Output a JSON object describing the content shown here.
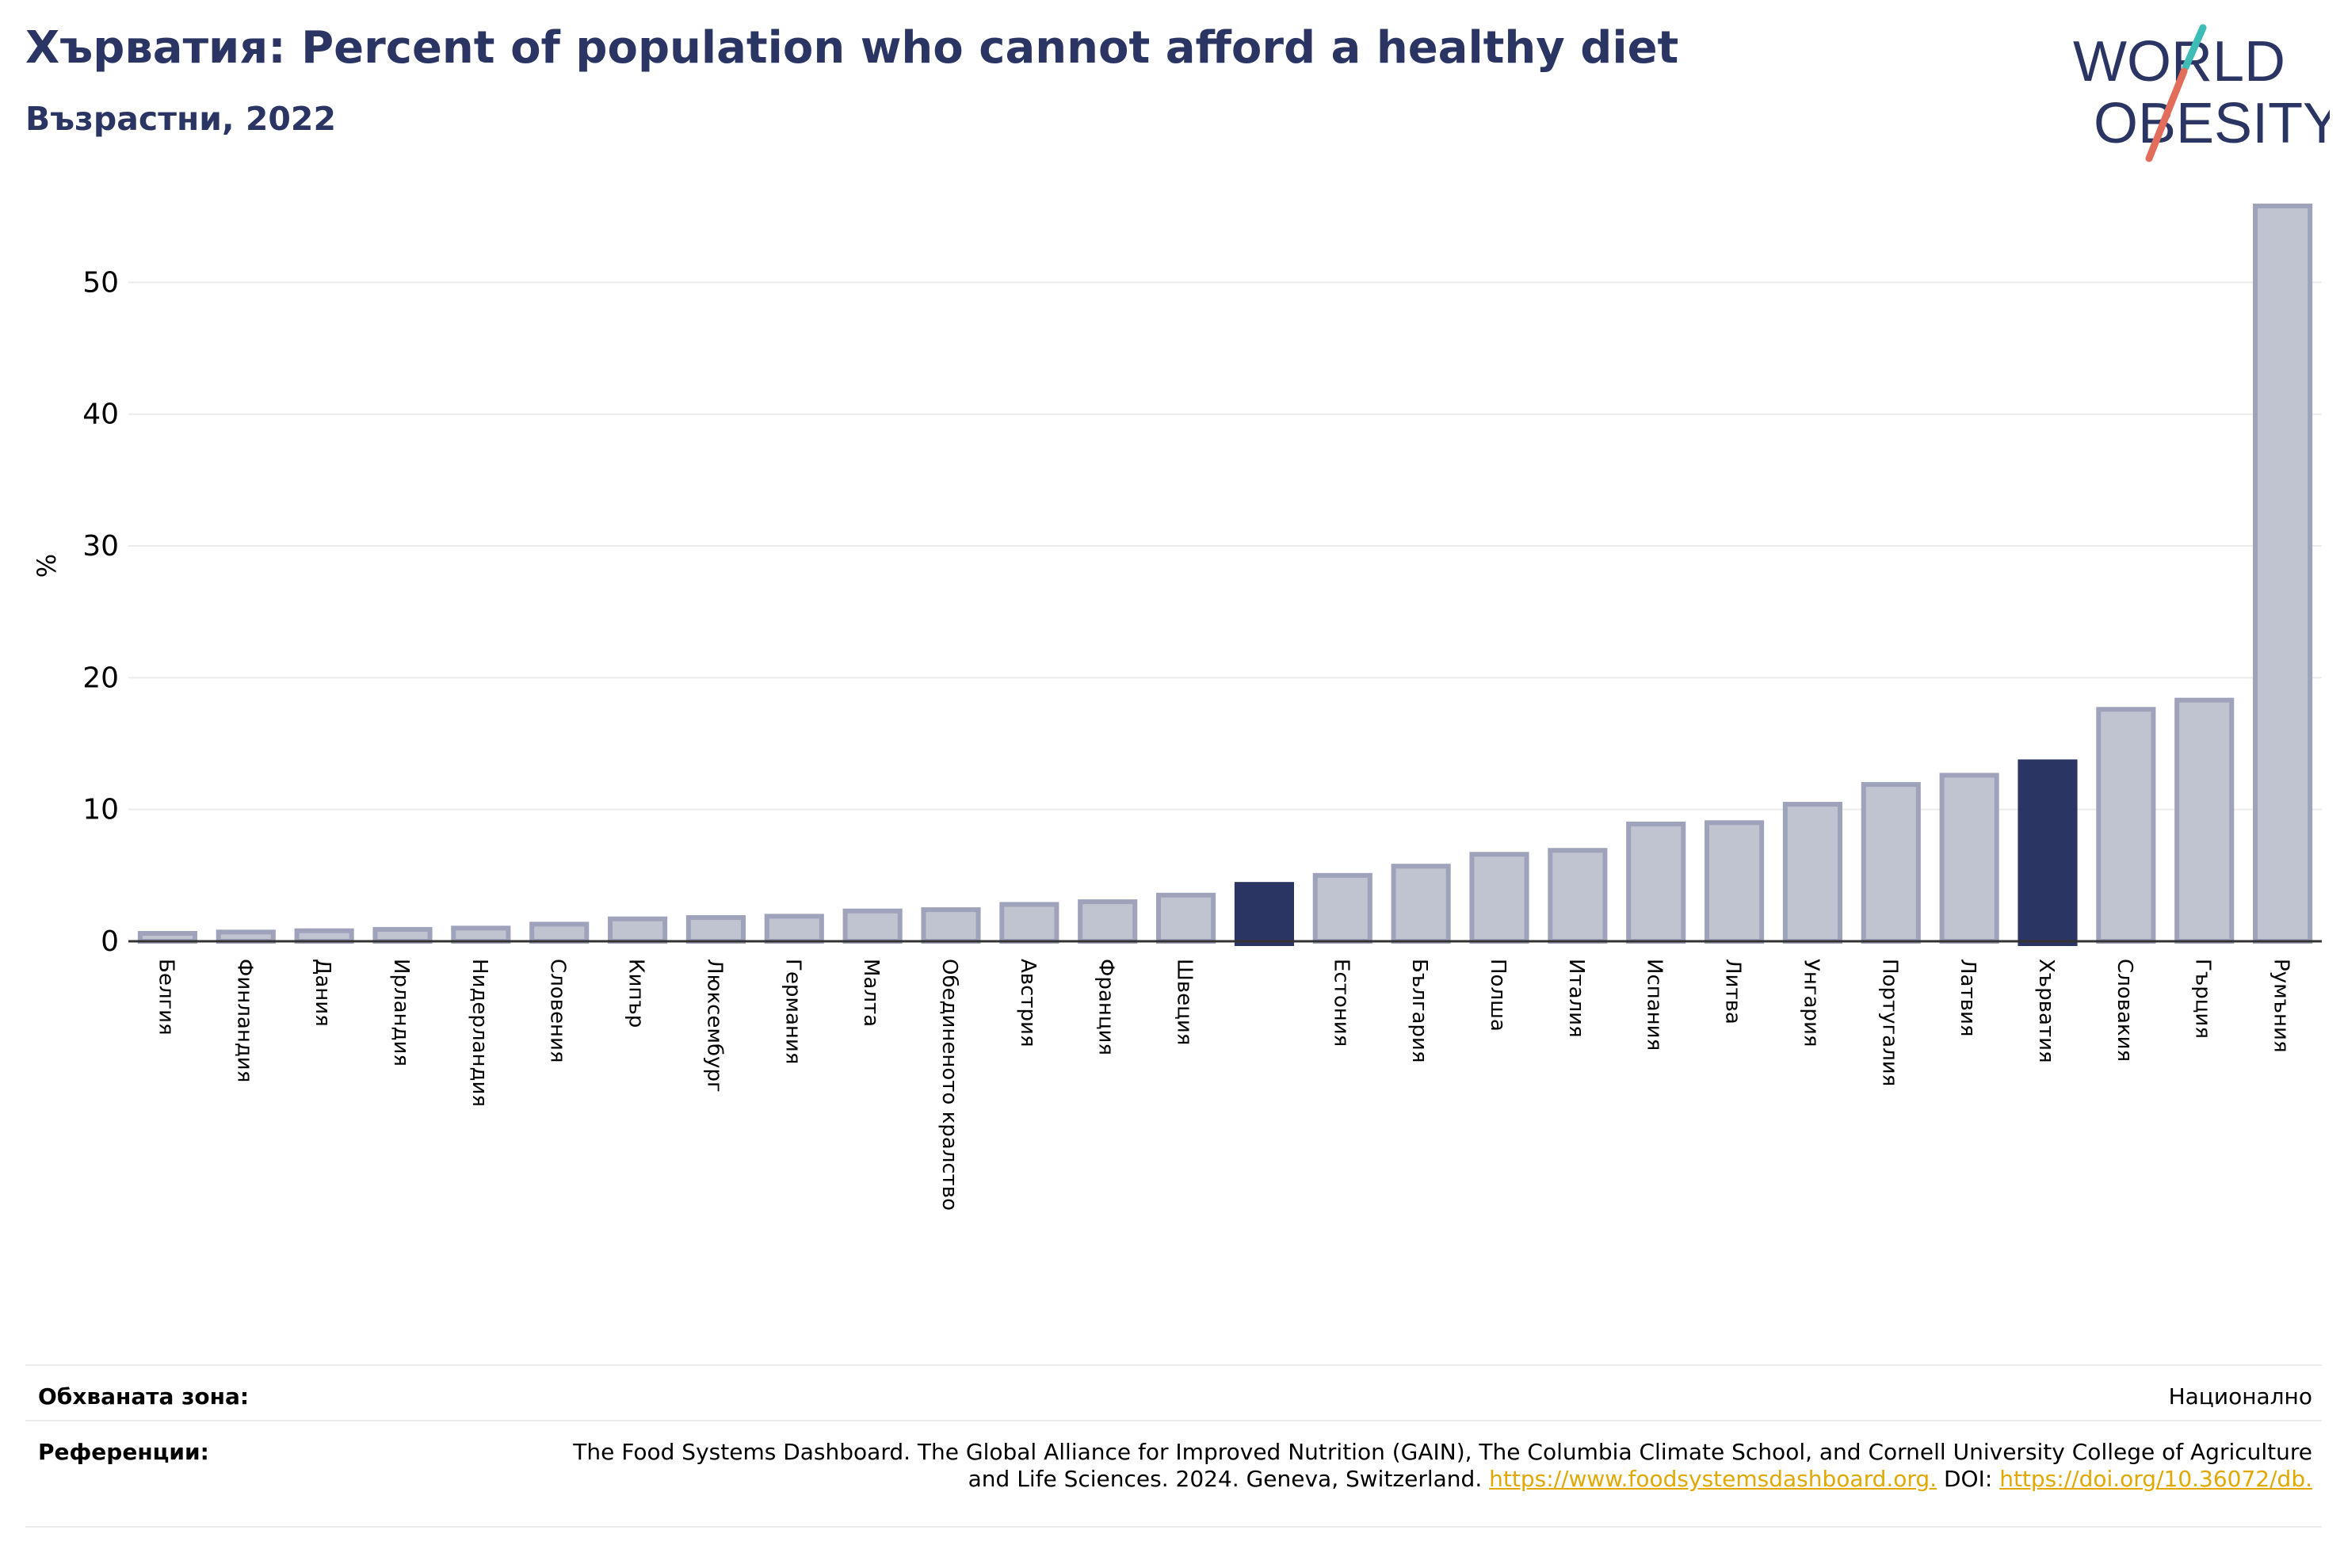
{
  "header": {
    "title": "Хърватия: Percent of population who cannot afford a healthy diet",
    "subtitle": "Възрастни, 2022"
  },
  "logo": {
    "line1": "WORLD",
    "line2": "OBESITY",
    "accent_colors": [
      "#3ebdb6",
      "#e36d5b"
    ],
    "text_color": "#2b3563"
  },
  "colors": {
    "bar": "#c0c3d0",
    "bar_stroke": "#9ea3bb",
    "highlight": "#2b3563",
    "axis": "#333333",
    "grid": "#ebebeb"
  },
  "chart_data": {
    "type": "bar",
    "title": "Хърватия: Percent of population who cannot afford a healthy diet",
    "subtitle": "Възрастни, 2022",
    "ylabel": "%",
    "xlabel": "",
    "ylim": [
      0,
      57
    ],
    "yticks": [
      0,
      10,
      20,
      30,
      40,
      50
    ],
    "grid": true,
    "categories": [
      "Белгия",
      "Финландия",
      "Дания",
      "Ирландия",
      "Нидерландия",
      "Словения",
      "Кипър",
      "Люксембург",
      "Германия",
      "Малта",
      "Обединеното кралство",
      "Австрия",
      "Франция",
      "Швеция",
      "",
      "Естония",
      "България",
      "Полша",
      "Италия",
      "Испания",
      "Литва",
      "Унгария",
      "Португалия",
      "Латвия",
      "Хърватия",
      "Словакия",
      "Гърция",
      "Румъния"
    ],
    "values": [
      0.6,
      0.7,
      0.8,
      0.9,
      1.0,
      1.3,
      1.7,
      1.8,
      1.9,
      2.3,
      2.4,
      2.8,
      3.0,
      3.5,
      4.5,
      5.0,
      5.7,
      6.6,
      6.9,
      8.9,
      9.0,
      10.4,
      11.9,
      12.6,
      13.8,
      17.6,
      18.3,
      55.8
    ],
    "highlight": [
      14,
      24
    ]
  },
  "footer": {
    "coverage_label": "Обхваната зона:",
    "coverage_value": "Национално",
    "references_label": "Референции:",
    "references_text": "The Food Systems Dashboard. The Global Alliance for Improved Nutrition (GAIN), The Columbia Climate School, and Cornell University College of Agriculture and Life Sciences. 2024. Geneva, Switzerland.",
    "references_link1": "https://www.foodsystemsdashboard.org.",
    "references_doi_label": "DOI:",
    "references_link2": "https://doi.org/10.36072/db."
  }
}
